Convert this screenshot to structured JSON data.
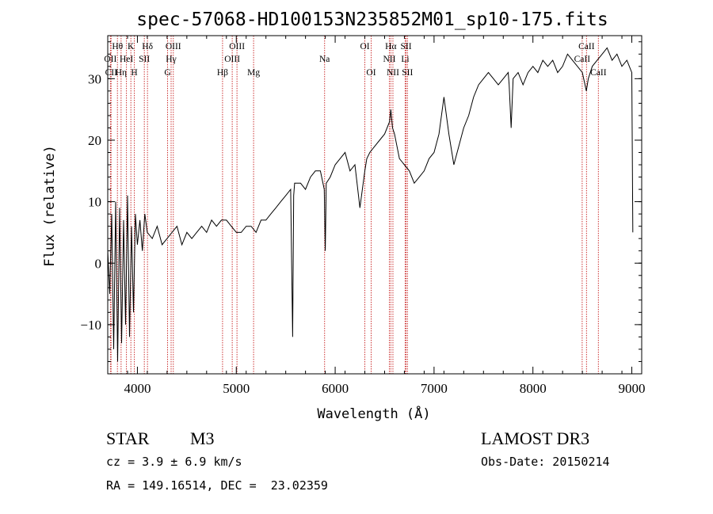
{
  "chart_data": {
    "type": "line",
    "title": "spec-57068-HD100153N235852M01_sp10-175.fits",
    "xlabel": "Wavelength (Å)",
    "ylabel": "Flux (relative)",
    "xlim": [
      3700,
      9100
    ],
    "ylim": [
      -18,
      37
    ],
    "x_ticks": [
      4000,
      5000,
      6000,
      7000,
      8000,
      9000
    ],
    "x_tick_labels": [
      "4000",
      "5000",
      "6000",
      "7000",
      "8000",
      "9000"
    ],
    "y_ticks": [
      -10,
      0,
      10,
      20,
      30
    ],
    "y_tick_labels": [
      "−10",
      "0",
      "10",
      "20",
      "30"
    ],
    "grid": false,
    "series": [
      {
        "x": [
          3700,
          3720,
          3740,
          3760,
          3780,
          3800,
          3820,
          3840,
          3860,
          3880,
          3900,
          3920,
          3940,
          3960,
          3980,
          4000,
          4025,
          4050,
          4075,
          4100,
          4150,
          4200,
          4250,
          4300,
          4350,
          4400,
          4450,
          4500,
          4550,
          4600,
          4650,
          4700,
          4750,
          4800,
          4850,
          4900,
          4950,
          5000,
          5050,
          5100,
          5150,
          5200,
          5250,
          5300,
          5350,
          5400,
          5450,
          5500,
          5550,
          5570,
          5580,
          5590,
          5650,
          5700,
          5750,
          5800,
          5850,
          5890,
          5900,
          5910,
          5950,
          6000,
          6050,
          6100,
          6150,
          6200,
          6250,
          6300,
          6320,
          6350,
          6400,
          6450,
          6500,
          6550,
          6563,
          6580,
          6600,
          6650,
          6700,
          6750,
          6800,
          6850,
          6900,
          6950,
          7000,
          7050,
          7100,
          7150,
          7200,
          7250,
          7300,
          7350,
          7400,
          7450,
          7500,
          7550,
          7600,
          7650,
          7700,
          7750,
          7760,
          7780,
          7800,
          7850,
          7900,
          7950,
          8000,
          8050,
          8100,
          8150,
          8200,
          8250,
          8300,
          8350,
          8400,
          8450,
          8500,
          8540,
          8560,
          8600,
          8650,
          8700,
          8750,
          8800,
          8850,
          8900,
          8950,
          9000,
          9010
        ],
        "y": [
          2,
          -5,
          8,
          -14,
          10,
          -16,
          9,
          -13,
          7,
          -10,
          11,
          -12,
          6,
          -8,
          8,
          3,
          7,
          2,
          8,
          5,
          4,
          6,
          3,
          4,
          5,
          6,
          3,
          5,
          4,
          5,
          6,
          5,
          7,
          6,
          7,
          7,
          6,
          5,
          5,
          6,
          6,
          5,
          7,
          7,
          8,
          9,
          10,
          11,
          12,
          -12,
          11,
          13,
          13,
          12,
          14,
          15,
          15,
          12,
          2,
          13,
          14,
          16,
          17,
          18,
          15,
          16,
          9,
          15,
          17,
          18,
          19,
          20,
          21,
          23,
          25,
          22,
          21,
          17,
          16,
          15,
          13,
          14,
          15,
          17,
          18,
          21,
          27,
          21,
          16,
          19,
          22,
          24,
          27,
          29,
          30,
          31,
          30,
          29,
          30,
          31,
          29,
          22,
          30,
          31,
          29,
          31,
          32,
          31,
          33,
          32,
          33,
          31,
          32,
          34,
          33,
          32,
          31,
          28,
          30,
          32,
          33,
          34,
          35,
          33,
          34,
          32,
          33,
          31,
          5
        ],
        "color": "#000000"
      }
    ],
    "spectral_lines": [
      {
        "label": "Hθ",
        "wl": 3798,
        "row": 1
      },
      {
        "label": "OII",
        "wl": 3727,
        "row": 2
      },
      {
        "label": "CII",
        "wl": 3734,
        "row": 3
      },
      {
        "label": "Hη",
        "wl": 3835,
        "row": 3
      },
      {
        "label": "HeI",
        "wl": 3889,
        "row": 2
      },
      {
        "label": "K",
        "wl": 3934,
        "row": 1
      },
      {
        "label": "SII",
        "wl": 4070,
        "row": 2
      },
      {
        "label": "H",
        "wl": 3969,
        "row": 3
      },
      {
        "label": "Hδ",
        "wl": 4102,
        "row": 1
      },
      {
        "label": "OIII",
        "wl": 4363,
        "row": 1
      },
      {
        "label": "Hγ",
        "wl": 4341,
        "row": 2
      },
      {
        "label": "G",
        "wl": 4305,
        "row": 3
      },
      {
        "label": "OIII",
        "wl": 5007,
        "row": 1
      },
      {
        "label": "OIII",
        "wl": 4959,
        "row": 2
      },
      {
        "label": "Hβ",
        "wl": 4861,
        "row": 3
      },
      {
        "label": "Mg",
        "wl": 5175,
        "row": 3
      },
      {
        "label": "Na",
        "wl": 5893,
        "row": 2
      },
      {
        "label": "OI",
        "wl": 6300,
        "row": 1
      },
      {
        "label": "OI",
        "wl": 6364,
        "row": 3
      },
      {
        "label": "Hα",
        "wl": 6563,
        "row": 1
      },
      {
        "label": "SII",
        "wl": 6717,
        "row": 1
      },
      {
        "label": "NII",
        "wl": 6548,
        "row": 2
      },
      {
        "label": "Li",
        "wl": 6708,
        "row": 2
      },
      {
        "label": "NII",
        "wl": 6584,
        "row": 3
      },
      {
        "label": "SII",
        "wl": 6731,
        "row": 3
      },
      {
        "label": "CaII",
        "wl": 8542,
        "row": 1
      },
      {
        "label": "CaII",
        "wl": 8498,
        "row": 2
      },
      {
        "label": "CaII",
        "wl": 8662,
        "row": 3
      }
    ],
    "line_marker_color": "#cc3333"
  },
  "info": {
    "object_class": "STAR",
    "subclass": "M3",
    "survey": "LAMOST DR3",
    "cz": "cz = 3.9 ± 6.9 km/s",
    "obs_date": "Obs-Date: 20150214",
    "coords": "RA = 149.16514, DEC =  23.02359"
  }
}
